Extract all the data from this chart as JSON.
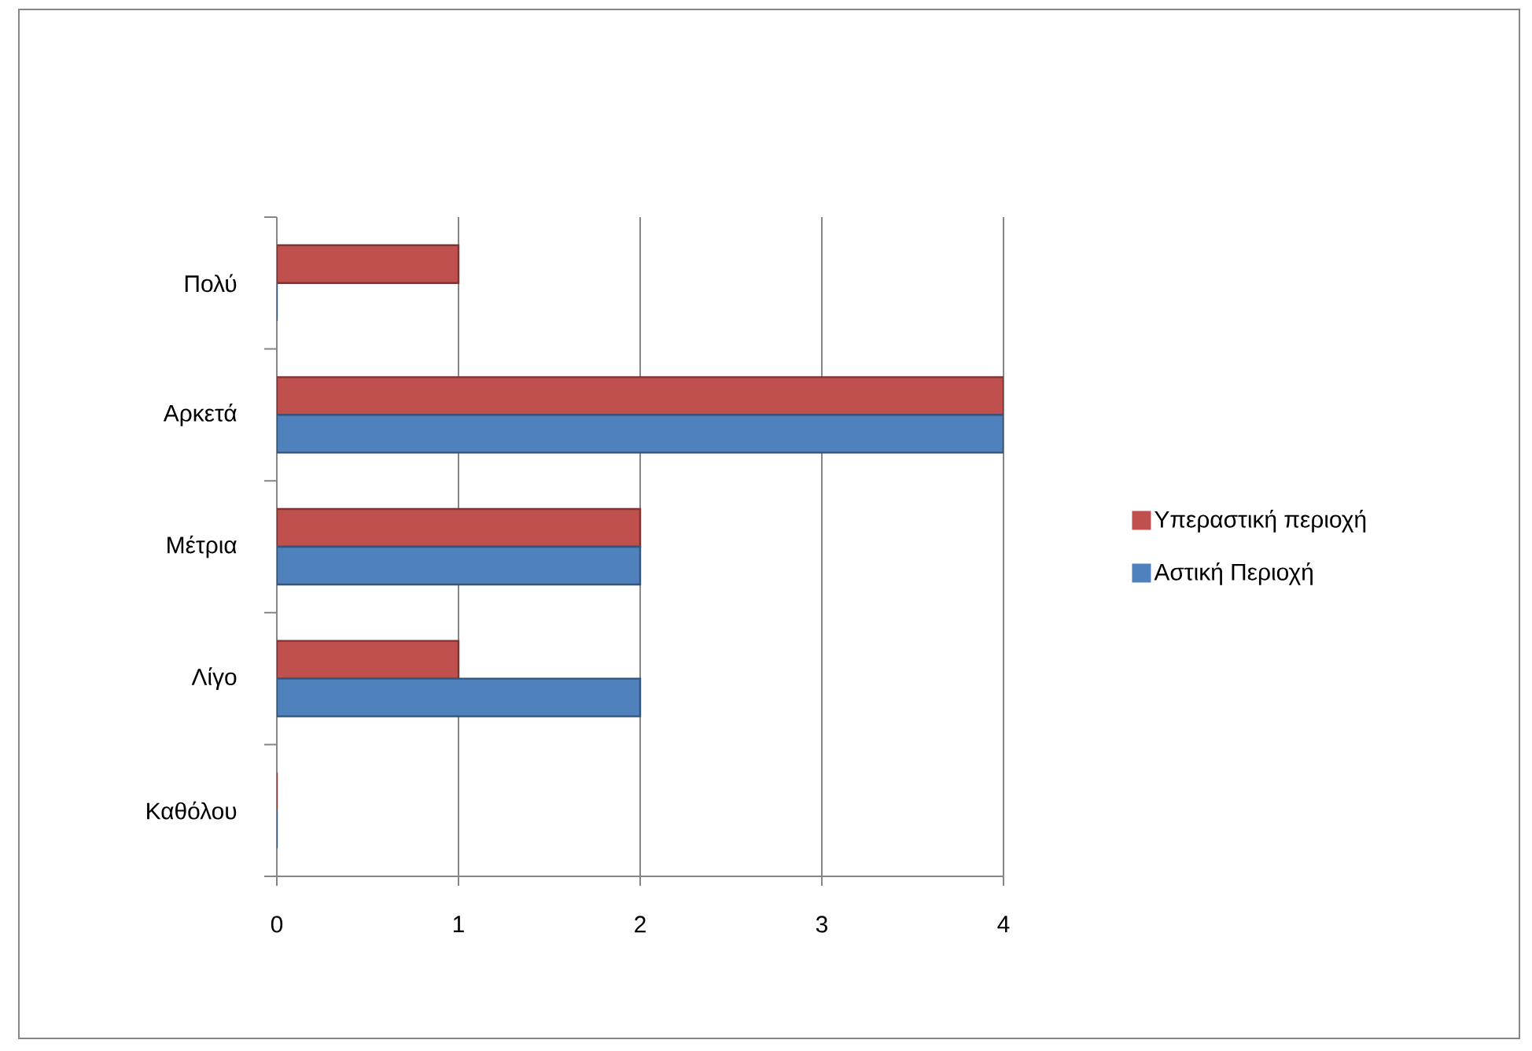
{
  "chart_data": {
    "type": "bar",
    "orientation": "horizontal",
    "categories": [
      "Πολύ",
      "Αρκετά",
      "Μέτρια",
      "Λίγο",
      "Καθόλου"
    ],
    "series": [
      {
        "name": "Υπεραστική περιοχή",
        "color": "#c0504d",
        "values": [
          1,
          4,
          2,
          1,
          0
        ]
      },
      {
        "name": "Αστική Περιοχή",
        "color": "#4f81bd",
        "values": [
          0,
          4,
          2,
          2,
          0
        ]
      }
    ],
    "xlim": [
      0,
      4
    ],
    "xticks": [
      0,
      1,
      2,
      3,
      4
    ],
    "grid": "x",
    "legend": "right"
  }
}
